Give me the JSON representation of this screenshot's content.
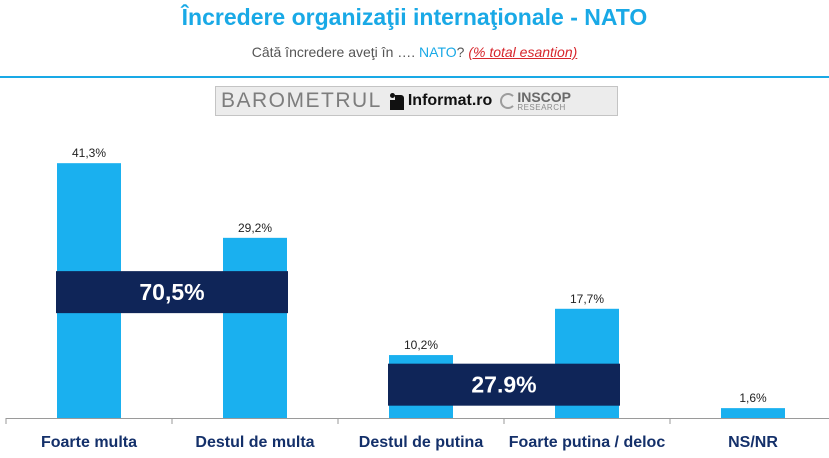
{
  "header": {
    "title": "Încredere organizaţii internaţionale - NATO",
    "subtitle_pre": "Câtă încredere aveţi în ….",
    "subtitle_highlight": "NATO",
    "subtitle_mark": "?",
    "subtitle_note": "(% total esantion)"
  },
  "banner": {
    "main": "BAROMETRUL",
    "informat": "Informat.ro",
    "inscop": "INSCOP",
    "research": "RESEARCH"
  },
  "colors": {
    "title": "#19a9e6",
    "bar": "#1ab0ef",
    "overlay": "#0f2558",
    "note": "#d7262c"
  },
  "chart_data": {
    "type": "bar",
    "categories": [
      "Foarte multa",
      "Destul de multa",
      "Destul de putina",
      "Foarte putina / deloc",
      "NS/NR"
    ],
    "values": [
      41.3,
      29.2,
      10.2,
      17.7,
      1.6
    ],
    "value_labels": [
      "41,3%",
      "29,2%",
      "10,2%",
      "17,7%",
      "1,6%"
    ],
    "ylim": [
      0,
      45
    ],
    "grid": false,
    "legend": "none",
    "annotations": [
      {
        "text": "70,5%",
        "covers": [
          "Foarte multa",
          "Destul de multa"
        ],
        "at_value": 20.4
      },
      {
        "text": "27.9%",
        "covers": [
          "Destul de putina",
          "Foarte putina / deloc"
        ],
        "at_value": 5.4
      }
    ]
  }
}
